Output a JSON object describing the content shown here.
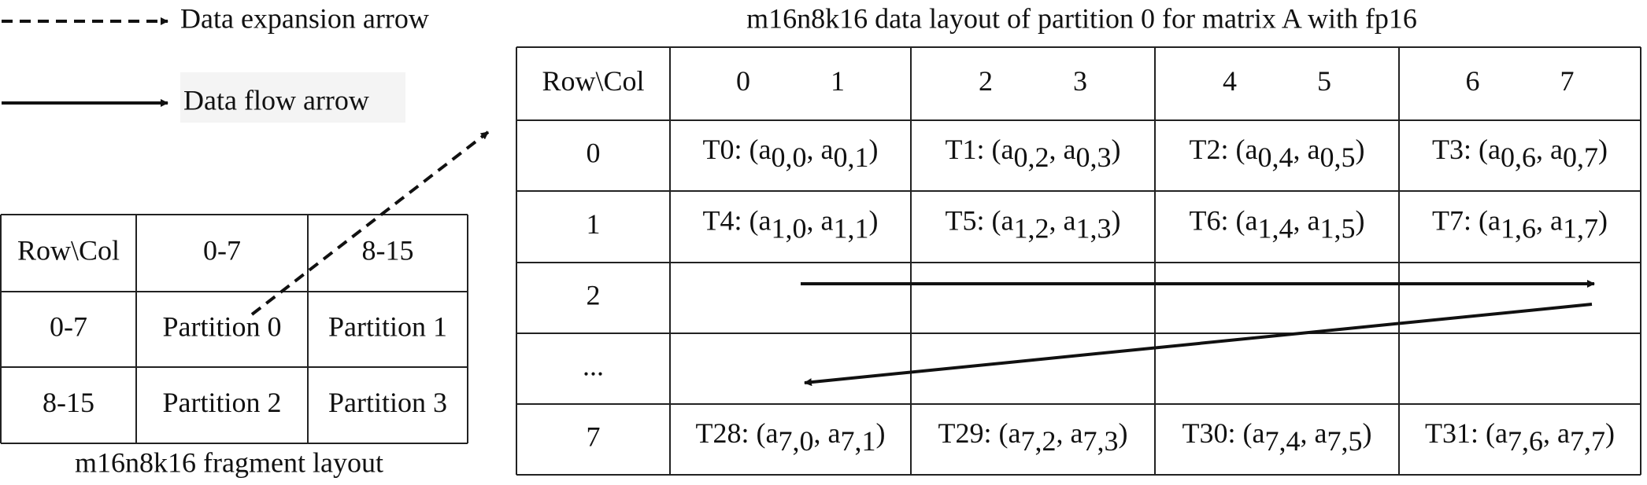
{
  "legend": [
    {
      "label": "Data expansion arrow"
    },
    {
      "label": "Data flow arrow"
    }
  ],
  "fragment_table": {
    "header": [
      "Row\\Col",
      "0-7",
      "8-15"
    ],
    "rows": [
      [
        "0-7",
        "Partition 0",
        "Partition 1"
      ],
      [
        "8-15",
        "Partition 2",
        "Partition 3"
      ]
    ],
    "caption": "m16n8k16 fragment layout"
  },
  "layout_table": {
    "title": "m16n8k16 data layout of partition 0 for matrix A with fp16",
    "corner": "Row\\Col",
    "columns": [
      [
        0,
        1
      ],
      [
        2,
        3
      ],
      [
        4,
        5
      ],
      [
        6,
        7
      ]
    ],
    "rows": [
      {
        "label": "0",
        "cells": [
          [
            "T0: (a",
            "0,0",
            ", a",
            "0,1",
            ")"
          ],
          [
            "T1: (a",
            "0,2",
            ", a",
            "0,3",
            ")"
          ],
          [
            "T2: (a",
            "0,4",
            ", a",
            "0,5",
            ")"
          ],
          [
            "T3: (a",
            "0,6",
            ", a",
            "0,7",
            ")"
          ]
        ]
      },
      {
        "label": "1",
        "cells": [
          [
            "T4: (a",
            "1,0",
            ", a",
            "1,1",
            ")"
          ],
          [
            "T5: (a",
            "1,2",
            ", a",
            "1,3",
            ")"
          ],
          [
            "T6: (a",
            "1,4",
            ", a",
            "1,5",
            ")"
          ],
          [
            "T7: (a",
            "1,6",
            ", a",
            "1,7",
            ")"
          ]
        ]
      },
      {
        "label": "2",
        "cells": []
      },
      {
        "label": "...",
        "cells": []
      },
      {
        "label": "7",
        "cells": [
          [
            "T28: (a",
            "7,0",
            ", a",
            "7,1",
            ")"
          ],
          [
            "T29: (a",
            "7,2",
            ", a",
            "7,3",
            ")"
          ],
          [
            "T30: (a",
            "7,4",
            ", a",
            "7,5",
            ")"
          ],
          [
            "T31: (a",
            "7,6",
            ", a",
            "7,7",
            ")"
          ]
        ]
      }
    ]
  }
}
